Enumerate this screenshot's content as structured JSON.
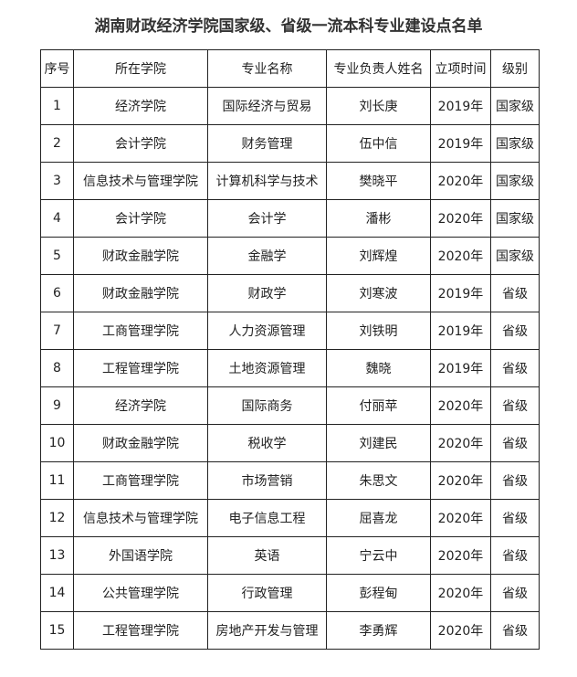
{
  "title": "湖南财政经济学院国家级、省级一流本科专业建设点名单",
  "headers": [
    "序号",
    "所在学院",
    "专业名称",
    "专业负责人姓名",
    "立项时间",
    "级别"
  ],
  "rows": [
    [
      "1",
      "经济学院",
      "国际经济与贸易",
      "刘长庚",
      "2019年",
      "国家级"
    ],
    [
      "2",
      "会计学院",
      "财务管理",
      "伍中信",
      "2019年",
      "国家级"
    ],
    [
      "3",
      "信息技术与管理学院",
      "计算机科学与技术",
      "樊晓平",
      "2020年",
      "国家级"
    ],
    [
      "4",
      "会计学院",
      "会计学",
      "潘彬",
      "2020年",
      "国家级"
    ],
    [
      "5",
      "财政金融学院",
      "金融学",
      "刘辉煌",
      "2020年",
      "国家级"
    ],
    [
      "6",
      "财政金融学院",
      "财政学",
      "刘寒波",
      "2019年",
      "省级"
    ],
    [
      "7",
      "工商管理学院",
      "人力资源管理",
      "刘铁明",
      "2019年",
      "省级"
    ],
    [
      "8",
      "工程管理学院",
      "土地资源管理",
      "魏晓",
      "2019年",
      "省级"
    ],
    [
      "9",
      "经济学院",
      "国际商务",
      "付丽苹",
      "2020年",
      "省级"
    ],
    [
      "10",
      "财政金融学院",
      "税收学",
      "刘建民",
      "2020年",
      "省级"
    ],
    [
      "11",
      "工商管理学院",
      "市场营销",
      "朱思文",
      "2020年",
      "省级"
    ],
    [
      "12",
      "信息技术与管理学院",
      "电子信息工程",
      "屈喜龙",
      "2020年",
      "省级"
    ],
    [
      "13",
      "外国语学院",
      "英语",
      "宁云中",
      "2020年",
      "省级"
    ],
    [
      "14",
      "公共管理学院",
      "行政管理",
      "彭程甸",
      "2020年",
      "省级"
    ],
    [
      "15",
      "工程管理学院",
      "房地产开发与管理",
      "李勇辉",
      "2020年",
      "省级"
    ]
  ]
}
